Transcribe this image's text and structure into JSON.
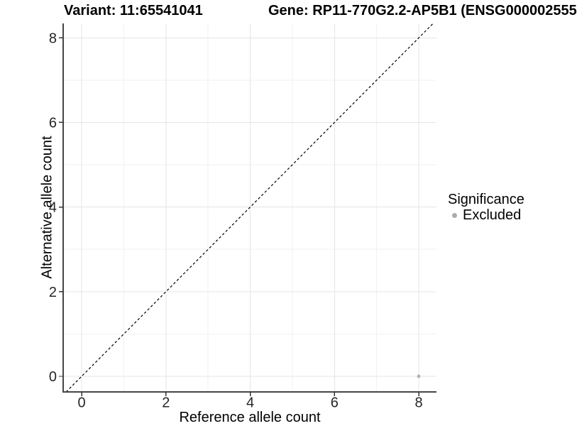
{
  "chart_data": {
    "type": "scatter",
    "title_left": "Variant: 11:65541041",
    "title_right": "Gene: RP11-770G2.2-AP5B1 (ENSG000002555",
    "xlabel": "Reference allele count",
    "ylabel": "Alternative allele count",
    "xlim": [
      -0.44,
      8.42
    ],
    "ylim": [
      -0.37,
      8.34
    ],
    "x_major_ticks": [
      0,
      2,
      4,
      6,
      8
    ],
    "y_major_ticks": [
      0,
      2,
      4,
      6,
      8
    ],
    "x_minor_gridlines": [
      1,
      3,
      5,
      7
    ],
    "y_minor_gridlines": [
      1,
      3,
      5,
      7
    ],
    "grid": true,
    "reference_line": {
      "slope": 1,
      "intercept": 0,
      "linetype": "dashed",
      "color": "#000000"
    },
    "series": [
      {
        "name": "Excluded",
        "color": "#b2b2b2",
        "points": [
          {
            "x": 8,
            "y": 0
          }
        ]
      }
    ],
    "legend": {
      "title": "Significance",
      "position": "right",
      "items": [
        {
          "label": "Excluded",
          "color": "#aaaaaa"
        }
      ]
    },
    "style": {
      "panel_background": "#ffffff",
      "grid_major_color": "#e4e4e4",
      "grid_minor_color": "#f1f1f1",
      "axis_line_color": "#454545",
      "tick_color": "#333333",
      "tick_label_color": "#262626",
      "point_radius": 2.4
    }
  }
}
